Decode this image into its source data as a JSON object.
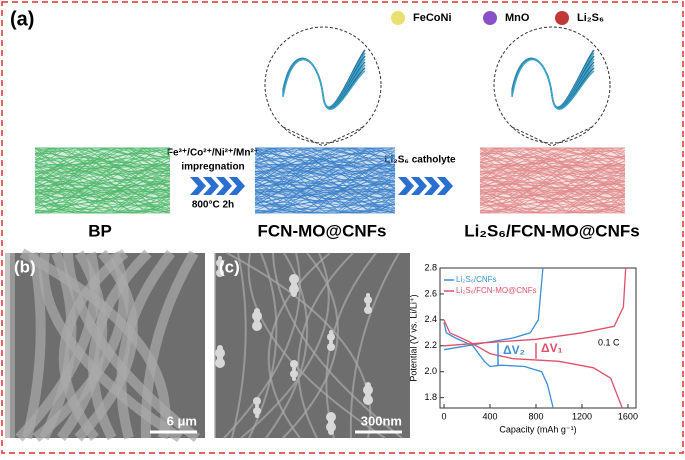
{
  "panel_a": {
    "label": "(a)",
    "legend": [
      "FeCoNi",
      "MnO",
      "Li₂S₆"
    ],
    "step1": [
      "Fe³⁺/Co²⁺/Ni²⁺/Mn²⁺",
      "impregnation",
      "800°C 2h"
    ],
    "step2": "Li₂S₆ catholyte",
    "samples": [
      "BP",
      "FCN-MO@CNFs",
      "Li₂S₆/FCN-MO@CNFs"
    ]
  },
  "panel_b": {
    "label": "(b)",
    "scale_bar": "6 μm"
  },
  "panel_c": {
    "label": "(c)",
    "scale_bar": "300nm"
  },
  "chart_data": {
    "type": "line",
    "x_label": "Capacity (mAh g⁻¹)",
    "y_label": "Potential (V vs. Li/Li⁺)",
    "xlim": [
      -35,
      1670
    ],
    "ylim": [
      1.72,
      2.8
    ],
    "xticks": [
      0,
      400,
      800,
      1200,
      1600
    ],
    "yticks": [
      1.8,
      {
        "value": 2,
        "label": "2.0"
      },
      2.2,
      2.4,
      2.6,
      2.8
    ],
    "legend": "upper left",
    "series": [
      {
        "name": "Li₂S₆/CNFs",
        "color": "#3b8fd6",
        "x": [
          0,
          20,
          100,
          250,
          350,
          400,
          500,
          700,
          850,
          900,
          950,
          null,
          0,
          200,
          400,
          600,
          750,
          820,
          860
        ],
        "values": [
          2.38,
          2.3,
          2.26,
          2.2,
          2.08,
          2.04,
          2.05,
          2.04,
          2.0,
          1.9,
          1.72,
          null,
          2.17,
          2.2,
          2.23,
          2.26,
          2.3,
          2.4,
          2.8
        ]
      },
      {
        "name": "Li₂S₆/FCN-MO@CNFs",
        "color": "#e0506a",
        "x": [
          0,
          50,
          200,
          400,
          600,
          1000,
          1300,
          1450,
          1550,
          null,
          0,
          300,
          800,
          1200,
          1480,
          1560,
          1580
        ],
        "values": [
          2.4,
          2.3,
          2.24,
          2.14,
          2.1,
          2.08,
          2.03,
          1.95,
          1.72,
          null,
          2.2,
          2.22,
          2.25,
          2.3,
          2.35,
          2.5,
          2.8
        ]
      }
    ],
    "annotations": [
      "ΔV₂",
      "ΔV₁",
      "0.1 C"
    ]
  }
}
